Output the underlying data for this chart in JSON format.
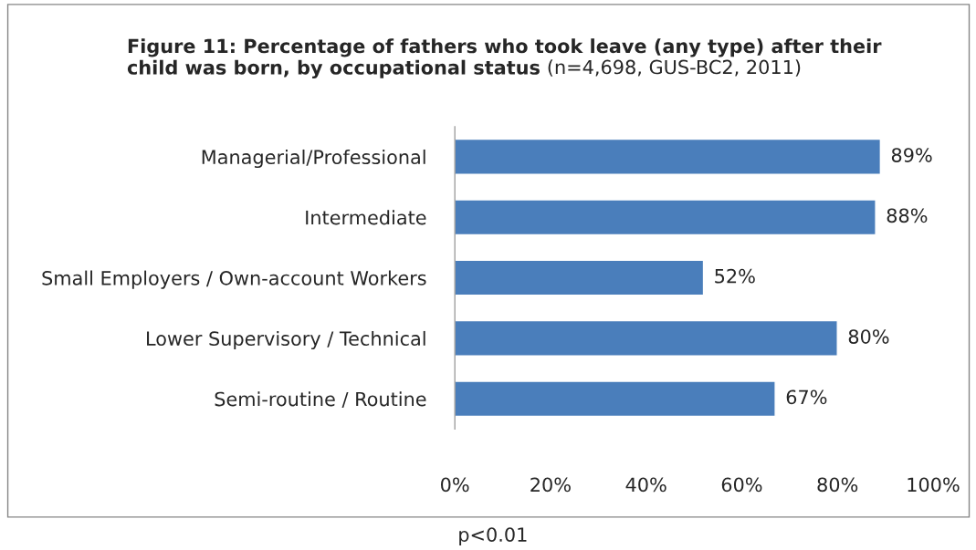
{
  "chart_data": {
    "type": "bar",
    "orientation": "horizontal",
    "title": "Figure 11: Percentage of fathers who took leave (any type) after their child was born, by occupational status",
    "subtitle": "(n=4,698, GUS-BC2, 2011)",
    "categories": [
      "Managerial/Professional",
      "Intermediate",
      "Small Employers / Own-account Workers",
      "Lower Supervisory / Technical",
      "Semi-routine / Routine"
    ],
    "values": [
      89,
      88,
      52,
      80,
      67
    ],
    "value_labels": [
      "89%",
      "88%",
      "52%",
      "80%",
      "67%"
    ],
    "color": "#4a7ebb",
    "xlim": [
      0,
      100
    ],
    "xticks": [
      {
        "value": 0,
        "label": "0%"
      },
      {
        "value": 20,
        "label": "20%"
      },
      {
        "value": 40,
        "label": "40%"
      },
      {
        "value": 60,
        "label": "60%"
      },
      {
        "value": 80,
        "label": "80%"
      },
      {
        "value": 100,
        "label": "100%"
      }
    ],
    "grid": false,
    "legend": false,
    "annotations": [
      "p<0.01"
    ]
  }
}
